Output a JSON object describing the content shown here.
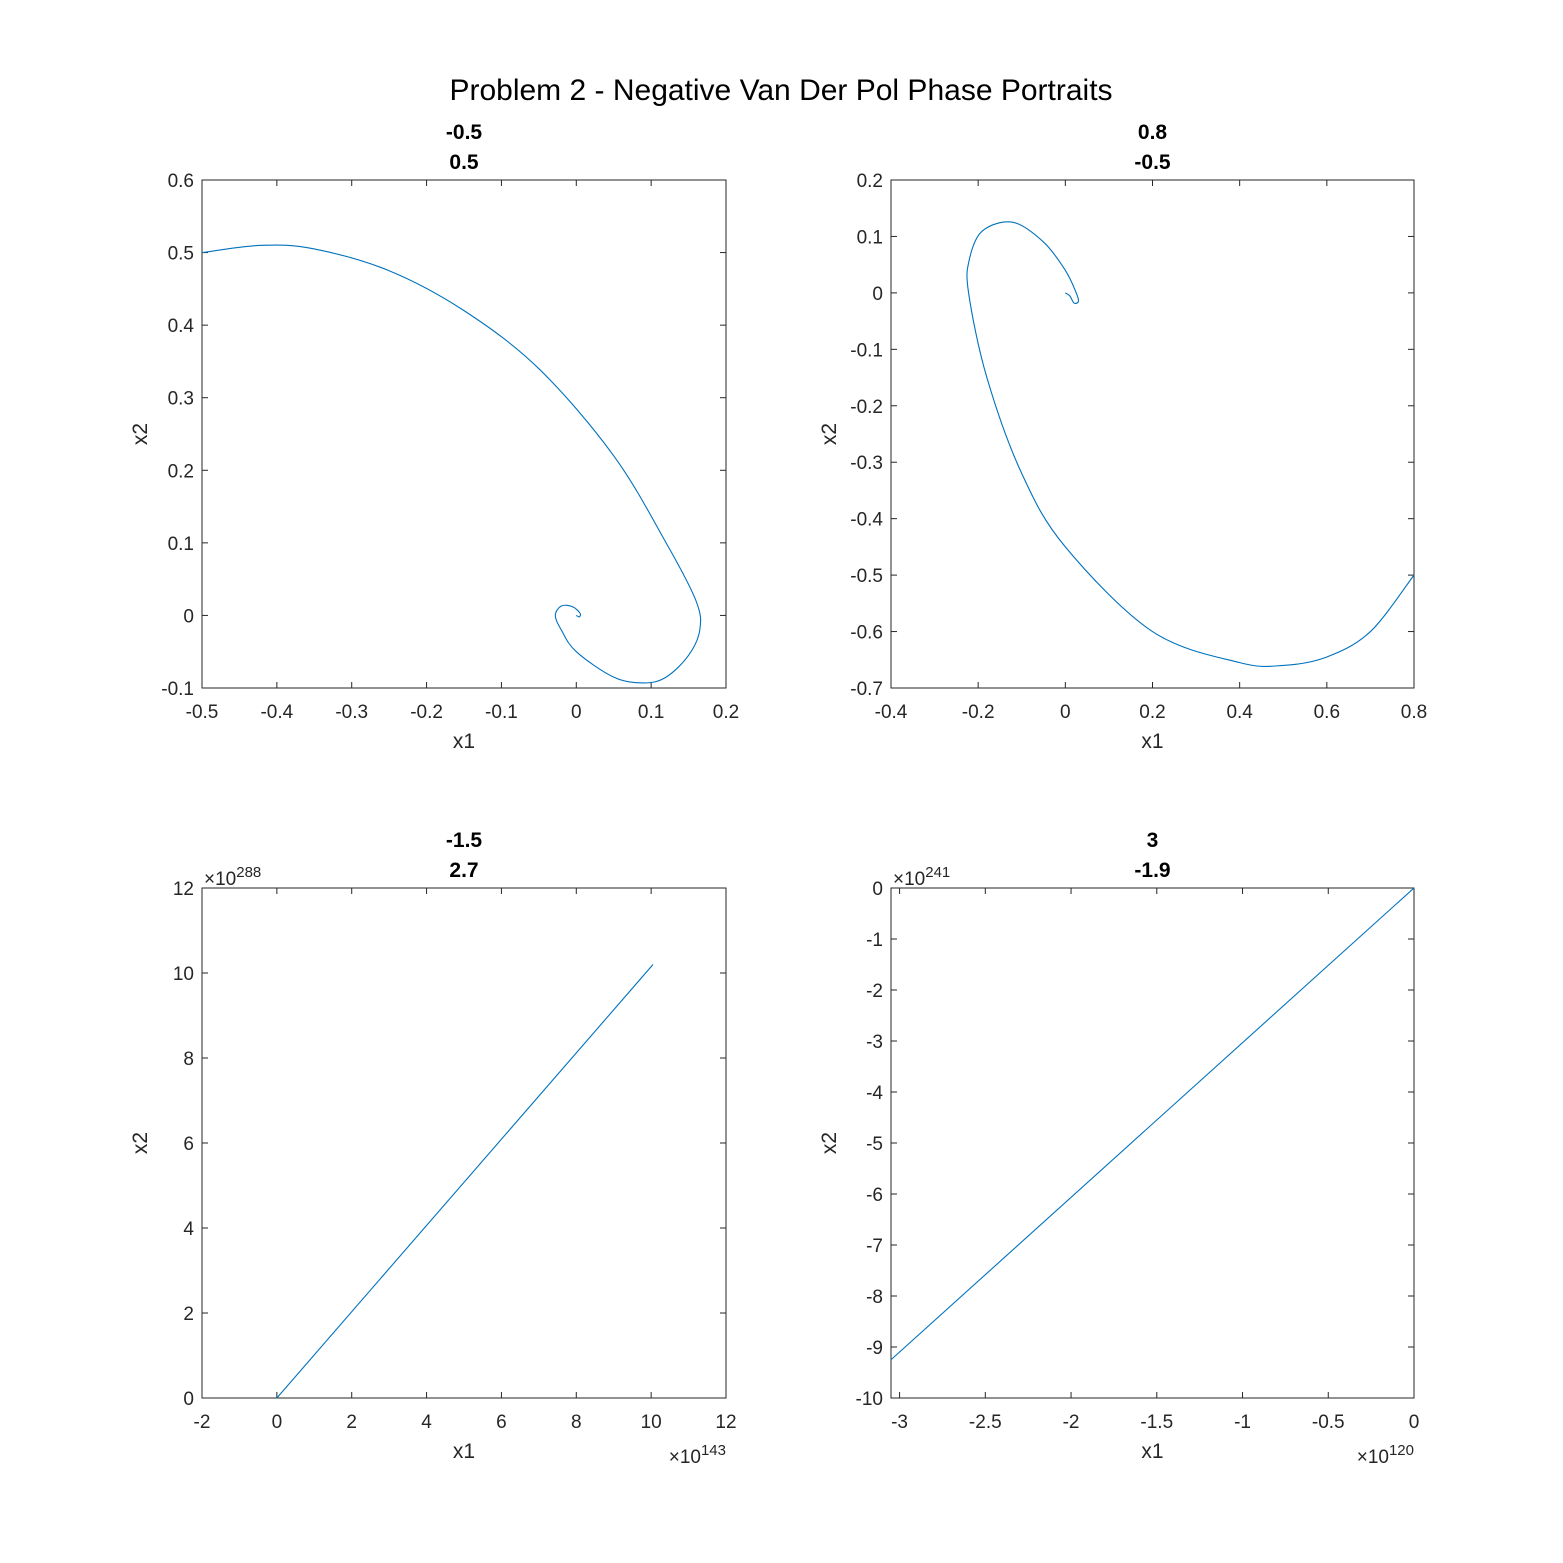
{
  "figure": {
    "title": "Problem 2 - Negative Van Der Pol Phase Portraits"
  },
  "colors": {
    "series": "#0072BD",
    "axis": "#262626"
  },
  "chart_data": [
    {
      "type": "line",
      "title_lines": [
        "-0.5",
        "0.5"
      ],
      "xlabel": "x1",
      "ylabel": "x2",
      "xlim": [
        -0.5,
        0.2
      ],
      "ylim": [
        -0.1,
        0.6
      ],
      "xticks": [
        -0.5,
        -0.4,
        -0.3,
        -0.2,
        -0.1,
        0,
        0.1,
        0.2
      ],
      "xtick_labels": [
        "-0.5",
        "-0.4",
        "-0.3",
        "-0.2",
        "-0.1",
        "0",
        "0.1",
        "0.2"
      ],
      "yticks": [
        -0.1,
        0,
        0.1,
        0.2,
        0.3,
        0.4,
        0.5,
        0.6
      ],
      "ytick_labels": [
        "-0.1",
        "0",
        "0.1",
        "0.2",
        "0.3",
        "0.4",
        "0.5",
        "0.6"
      ],
      "x_exponent": "",
      "y_exponent": "",
      "series": [
        {
          "x": [
            -0.5,
            -0.42,
            -0.35,
            -0.25,
            -0.15,
            -0.05,
            0.05,
            0.12,
            0.16,
            0.165,
            0.15,
            0.12,
            0.09,
            0.05,
            0.0,
            -0.02,
            -0.028,
            -0.02,
            -0.005,
            0.005,
            0.004,
            0.0
          ],
          "y": [
            0.5,
            0.51,
            0.505,
            0.475,
            0.42,
            0.34,
            0.22,
            0.1,
            0.02,
            -0.02,
            -0.055,
            -0.085,
            -0.093,
            -0.085,
            -0.05,
            -0.02,
            0.0,
            0.013,
            0.012,
            0.003,
            -0.002,
            0.0
          ]
        }
      ]
    },
    {
      "type": "line",
      "title_lines": [
        "0.8",
        "-0.5"
      ],
      "xlabel": "x1",
      "ylabel": "x2",
      "xlim": [
        -0.4,
        0.8
      ],
      "ylim": [
        -0.7,
        0.2
      ],
      "xticks": [
        -0.4,
        -0.2,
        0,
        0.2,
        0.4,
        0.6,
        0.8
      ],
      "xtick_labels": [
        "-0.4",
        "-0.2",
        "0",
        "0.2",
        "0.4",
        "0.6",
        "0.8"
      ],
      "yticks": [
        -0.7,
        -0.6,
        -0.5,
        -0.4,
        -0.3,
        -0.2,
        -0.1,
        0,
        0.1,
        0.2
      ],
      "ytick_labels": [
        "-0.7",
        "-0.6",
        "-0.5",
        "-0.4",
        "-0.3",
        "-0.2",
        "-0.1",
        "0",
        "0.1",
        "0.2"
      ],
      "x_exponent": "",
      "y_exponent": "",
      "series": [
        {
          "x": [
            0.8,
            0.7,
            0.6,
            0.5,
            0.4,
            0.2,
            0.0,
            -0.1,
            -0.18,
            -0.222,
            -0.22,
            -0.19,
            -0.12,
            -0.05,
            0.0,
            0.025,
            0.03,
            0.02,
            0.01,
            0.0
          ],
          "y": [
            -0.5,
            -0.6,
            -0.645,
            -0.66,
            -0.655,
            -0.6,
            -0.45,
            -0.32,
            -0.15,
            0.0,
            0.06,
            0.11,
            0.125,
            0.09,
            0.04,
            0.0,
            -0.015,
            -0.018,
            -0.005,
            0.0
          ]
        }
      ]
    },
    {
      "type": "line",
      "title_lines": [
        "-1.5",
        "2.7"
      ],
      "xlabel": "x1",
      "ylabel": "x2",
      "xlim": [
        -2,
        12
      ],
      "ylim": [
        0,
        12
      ],
      "xticks": [
        -2,
        0,
        2,
        4,
        6,
        8,
        10,
        12
      ],
      "xtick_labels": [
        "-2",
        "0",
        "2",
        "4",
        "6",
        "8",
        "10",
        "12"
      ],
      "yticks": [
        0,
        2,
        4,
        6,
        8,
        10,
        12
      ],
      "ytick_labels": [
        "0",
        "2",
        "4",
        "6",
        "8",
        "10",
        "12"
      ],
      "x_exponent": "143",
      "y_exponent": "288",
      "series": [
        {
          "x": [
            0,
            10.05
          ],
          "y": [
            0,
            10.2
          ]
        }
      ]
    },
    {
      "type": "line",
      "title_lines": [
        "3",
        "-1.9"
      ],
      "xlabel": "x1",
      "ylabel": "x2",
      "xlim": [
        -3.05,
        0
      ],
      "ylim": [
        -10,
        0
      ],
      "xticks": [
        -3,
        -2.5,
        -2,
        -1.5,
        -1,
        -0.5,
        0
      ],
      "xtick_labels": [
        "-3",
        "-2.5",
        "-2",
        "-1.5",
        "-1",
        "-0.5",
        "0"
      ],
      "yticks": [
        -10,
        -9,
        -8,
        -7,
        -6,
        -5,
        -4,
        -3,
        -2,
        -1,
        0
      ],
      "ytick_labels": [
        "-10",
        "-9",
        "-8",
        "-7",
        "-6",
        "-5",
        "-4",
        "-3",
        "-2",
        "-1",
        "0"
      ],
      "x_exponent": "120",
      "y_exponent": "241",
      "series": [
        {
          "x": [
            -3.05,
            0
          ],
          "y": [
            -9.25,
            0
          ]
        }
      ]
    }
  ]
}
